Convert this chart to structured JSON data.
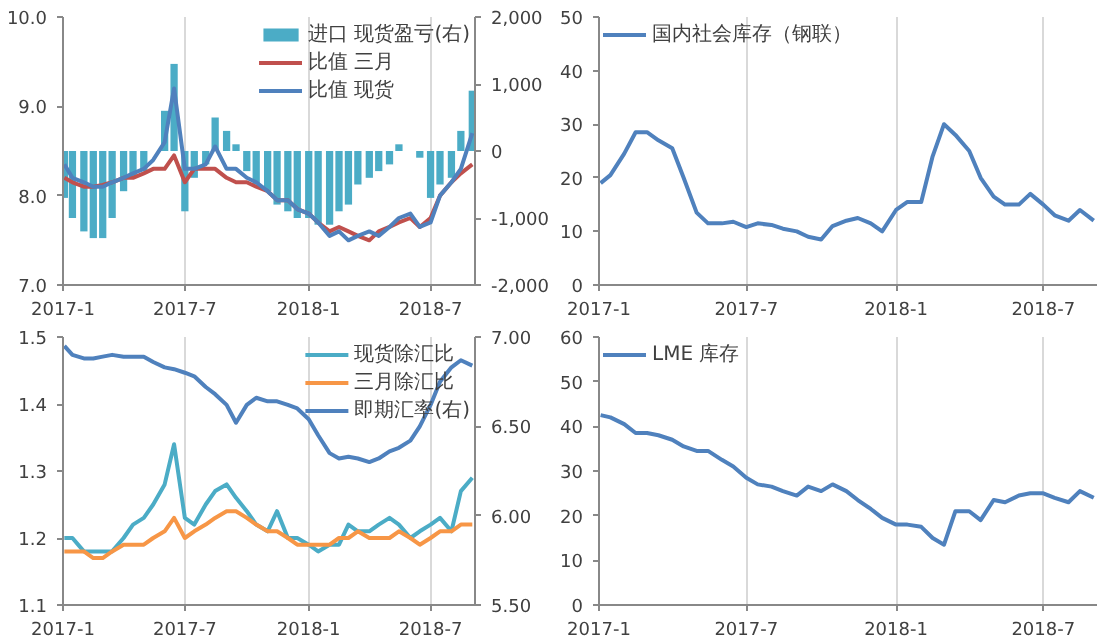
{
  "chart_data": [
    {
      "type": "line",
      "x": [
        "2017-01-03",
        "2017-01-15",
        "2017-02-01",
        "2017-02-15",
        "2017-03-01",
        "2017-03-15",
        "2017-04-01",
        "2017-04-15",
        "2017-05-01",
        "2017-05-15",
        "2017-06-01",
        "2017-06-15",
        "2017-07-01",
        "2017-07-15",
        "2017-08-01",
        "2017-08-15",
        "2017-09-01",
        "2017-09-15",
        "2017-10-01",
        "2017-10-15",
        "2017-11-01",
        "2017-11-15",
        "2017-12-01",
        "2017-12-15",
        "2018-01-01",
        "2018-01-15",
        "2018-02-01",
        "2018-02-15",
        "2018-03-01",
        "2018-03-15",
        "2018-04-01",
        "2018-04-15",
        "2018-05-01",
        "2018-05-15",
        "2018-06-01",
        "2018-06-15",
        "2018-07-01",
        "2018-07-15",
        "2018-08-01",
        "2018-08-15",
        "2018-09-01"
      ],
      "series": [
        {
          "name": "进口 现货盈亏(右)",
          "type": "bar",
          "axis": "y2",
          "color": "#4bacc6",
          "values": [
            -700,
            -1000,
            -1200,
            -1300,
            -1300,
            -1000,
            -600,
            -400,
            -300,
            0,
            600,
            1300,
            -900,
            -400,
            -200,
            500,
            300,
            100,
            -300,
            -500,
            -600,
            -800,
            -900,
            -1000,
            -1000,
            -1100,
            -1100,
            -900,
            -800,
            -500,
            -400,
            -300,
            -200,
            100,
            0,
            -100,
            -700,
            -500,
            -400,
            300,
            900
          ]
        },
        {
          "name": "比值 三月",
          "color": "#c0504d",
          "values": [
            8.2,
            8.15,
            8.1,
            8.1,
            8.12,
            8.15,
            8.2,
            8.2,
            8.25,
            8.3,
            8.3,
            8.45,
            8.15,
            8.3,
            8.3,
            8.3,
            8.2,
            8.15,
            8.15,
            8.1,
            8.05,
            7.95,
            7.95,
            7.85,
            7.8,
            7.7,
            7.6,
            7.65,
            7.6,
            7.55,
            7.5,
            7.6,
            7.65,
            7.7,
            7.75,
            7.65,
            7.75,
            8.0,
            8.15,
            8.25,
            8.35
          ]
        },
        {
          "name": "比值 现货",
          "color": "#4f81bd",
          "values": [
            8.35,
            8.2,
            8.15,
            8.1,
            8.1,
            8.15,
            8.2,
            8.25,
            8.3,
            8.4,
            8.6,
            9.2,
            8.3,
            8.3,
            8.35,
            8.55,
            8.3,
            8.3,
            8.2,
            8.15,
            8.05,
            7.95,
            7.95,
            7.85,
            7.8,
            7.7,
            7.55,
            7.6,
            7.5,
            7.55,
            7.6,
            7.55,
            7.65,
            7.75,
            7.8,
            7.65,
            7.7,
            8.0,
            8.15,
            8.3,
            8.7
          ]
        }
      ],
      "xlim": [
        "2017-01-01",
        "2018-09-05"
      ],
      "xticks": [
        {
          "value": "2017-01-01",
          "label": "2017-1"
        },
        {
          "value": "2017-07-01",
          "label": "2017-7"
        },
        {
          "value": "2018-01-01",
          "label": "2018-1"
        },
        {
          "value": "2018-07-01",
          "label": "2018-7"
        }
      ],
      "ylim": [
        7,
        10
      ],
      "yticks": [
        {
          "value": 7,
          "label": "7.0"
        },
        {
          "value": 8,
          "label": "8.0"
        },
        {
          "value": 9,
          "label": "9.0"
        },
        {
          "value": 10,
          "label": "10.0"
        }
      ],
      "y2lim": [
        -2000,
        2000
      ],
      "y2ticks": [
        {
          "value": -2000,
          "label": "-2,000"
        },
        {
          "value": -1000,
          "label": "-1,000"
        },
        0,
        {
          "value": 1000,
          "label": "1,000"
        },
        {
          "value": 2000,
          "label": "2,000"
        }
      ],
      "grid": "x",
      "legend": "top right"
    },
    {
      "type": "line",
      "x": [
        "2017-01-03",
        "2017-01-15",
        "2017-02-01",
        "2017-02-15",
        "2017-03-01",
        "2017-03-15",
        "2017-04-01",
        "2017-04-15",
        "2017-05-01",
        "2017-05-15",
        "2017-06-01",
        "2017-06-15",
        "2017-07-01",
        "2017-07-15",
        "2017-08-01",
        "2017-08-15",
        "2017-09-01",
        "2017-09-15",
        "2017-10-01",
        "2017-10-15",
        "2017-11-01",
        "2017-11-15",
        "2017-12-01",
        "2017-12-15",
        "2018-01-01",
        "2018-01-15",
        "2018-02-01",
        "2018-02-15",
        "2018-03-01",
        "2018-03-15",
        "2018-04-01",
        "2018-04-15",
        "2018-05-01",
        "2018-05-15",
        "2018-06-01",
        "2018-06-15",
        "2018-07-01",
        "2018-07-15",
        "2018-08-01",
        "2018-08-15",
        "2018-09-01"
      ],
      "series": [
        {
          "name": "国内社会库存（钢联）",
          "color": "#4f81bd",
          "values": [
            19,
            20.5,
            24.5,
            28.5,
            28.5,
            27,
            25.5,
            20,
            13.5,
            11.5,
            11.5,
            11.8,
            10.8,
            11.5,
            11.2,
            10.5,
            10,
            9,
            8.5,
            11,
            12,
            12.5,
            11.5,
            10,
            14,
            15.5,
            15.5,
            24,
            30,
            28,
            25,
            20,
            16.5,
            15,
            15,
            17,
            15,
            13,
            12,
            14,
            12
          ]
        }
      ],
      "xlim": [
        "2017-01-01",
        "2018-09-05"
      ],
      "xticks": [
        {
          "value": "2017-01-01",
          "label": "2017-1"
        },
        {
          "value": "2017-07-01",
          "label": "2017-7"
        },
        {
          "value": "2018-01-01",
          "label": "2018-1"
        },
        {
          "value": "2018-07-01",
          "label": "2018-7"
        }
      ],
      "ylim": [
        0,
        50
      ],
      "yticks": [
        0,
        10,
        20,
        30,
        40,
        50
      ],
      "grid": "x",
      "legend": "top left"
    },
    {
      "type": "line",
      "x": [
        "2017-01-03",
        "2017-01-15",
        "2017-02-01",
        "2017-02-15",
        "2017-03-01",
        "2017-03-15",
        "2017-04-01",
        "2017-04-15",
        "2017-05-01",
        "2017-05-15",
        "2017-06-01",
        "2017-06-15",
        "2017-07-01",
        "2017-07-15",
        "2017-08-01",
        "2017-08-15",
        "2017-09-01",
        "2017-09-15",
        "2017-10-01",
        "2017-10-15",
        "2017-11-01",
        "2017-11-15",
        "2017-12-01",
        "2017-12-15",
        "2018-01-01",
        "2018-01-15",
        "2018-02-01",
        "2018-02-15",
        "2018-03-01",
        "2018-03-15",
        "2018-04-01",
        "2018-04-15",
        "2018-05-01",
        "2018-05-15",
        "2018-06-01",
        "2018-06-15",
        "2018-07-01",
        "2018-07-15",
        "2018-08-01",
        "2018-08-15",
        "2018-09-01"
      ],
      "series": [
        {
          "name": "现货除汇比",
          "color": "#4bacc6",
          "values": [
            1.2,
            1.2,
            1.18,
            1.18,
            1.18,
            1.18,
            1.2,
            1.22,
            1.23,
            1.25,
            1.28,
            1.34,
            1.23,
            1.22,
            1.25,
            1.27,
            1.28,
            1.26,
            1.24,
            1.22,
            1.21,
            1.24,
            1.2,
            1.2,
            1.19,
            1.18,
            1.19,
            1.19,
            1.22,
            1.21,
            1.21,
            1.22,
            1.23,
            1.22,
            1.2,
            1.21,
            1.22,
            1.23,
            1.21,
            1.27,
            1.29
          ]
        },
        {
          "name": "三月除汇比",
          "color": "#f79646",
          "values": [
            1.18,
            1.18,
            1.18,
            1.17,
            1.17,
            1.18,
            1.19,
            1.19,
            1.19,
            1.2,
            1.21,
            1.23,
            1.2,
            1.21,
            1.22,
            1.23,
            1.24,
            1.24,
            1.23,
            1.22,
            1.21,
            1.21,
            1.2,
            1.19,
            1.19,
            1.19,
            1.19,
            1.2,
            1.2,
            1.21,
            1.2,
            1.2,
            1.2,
            1.21,
            1.2,
            1.19,
            1.2,
            1.21,
            1.21,
            1.22,
            1.22
          ]
        },
        {
          "name": "即期汇率(右)",
          "axis": "y2",
          "color": "#4f81bd",
          "values": [
            6.95,
            6.9,
            6.88,
            6.88,
            6.89,
            6.9,
            6.89,
            6.89,
            6.89,
            6.86,
            6.83,
            6.82,
            6.8,
            6.78,
            6.72,
            6.68,
            6.62,
            6.52,
            6.62,
            6.66,
            6.64,
            6.64,
            6.62,
            6.6,
            6.54,
            6.45,
            6.35,
            6.32,
            6.33,
            6.32,
            6.3,
            6.32,
            6.36,
            6.38,
            6.42,
            6.5,
            6.62,
            6.75,
            6.83,
            6.87,
            6.84
          ]
        }
      ],
      "xlim": [
        "2017-01-01",
        "2018-09-05"
      ],
      "xticks": [
        {
          "value": "2017-01-01",
          "label": "2017-1"
        },
        {
          "value": "2017-07-01",
          "label": "2017-7"
        },
        {
          "value": "2018-01-01",
          "label": "2018-1"
        },
        {
          "value": "2018-07-01",
          "label": "2018-7"
        }
      ],
      "ylim": [
        1.1,
        1.5
      ],
      "yticks": [
        1.1,
        1.2,
        1.3,
        1.4,
        1.5
      ],
      "y2lim": [
        5.5,
        7.0
      ],
      "y2ticks": [
        {
          "value": 5.5,
          "label": "5.50"
        },
        {
          "value": 6.0,
          "label": "6.00"
        },
        {
          "value": 6.5,
          "label": "6.50"
        },
        {
          "value": 7.0,
          "label": "7.00"
        }
      ],
      "grid": "x",
      "legend": "top right"
    },
    {
      "type": "line",
      "x": [
        "2017-01-03",
        "2017-01-15",
        "2017-02-01",
        "2017-02-15",
        "2017-03-01",
        "2017-03-15",
        "2017-04-01",
        "2017-04-15",
        "2017-05-01",
        "2017-05-15",
        "2017-06-01",
        "2017-06-15",
        "2017-07-01",
        "2017-07-15",
        "2017-08-01",
        "2017-08-15",
        "2017-09-01",
        "2017-09-15",
        "2017-10-01",
        "2017-10-15",
        "2017-11-01",
        "2017-11-15",
        "2017-12-01",
        "2017-12-15",
        "2018-01-01",
        "2018-01-15",
        "2018-02-01",
        "2018-02-15",
        "2018-03-01",
        "2018-03-15",
        "2018-04-01",
        "2018-04-15",
        "2018-05-01",
        "2018-05-15",
        "2018-06-01",
        "2018-06-15",
        "2018-07-01",
        "2018-07-15",
        "2018-08-01",
        "2018-08-15",
        "2018-09-01"
      ],
      "series": [
        {
          "name": "LME 库存",
          "color": "#4f81bd",
          "values": [
            42.5,
            42,
            40.5,
            38.5,
            38.5,
            38,
            37,
            35.5,
            34.5,
            34.5,
            32.5,
            31,
            28.5,
            27,
            26.5,
            25.5,
            24.5,
            26.5,
            25.5,
            27,
            25.5,
            23.5,
            21.5,
            19.5,
            18,
            18,
            17.5,
            15,
            13.5,
            21,
            21,
            19,
            23.5,
            23,
            24.5,
            25,
            25,
            24,
            23,
            25.5,
            24
          ]
        }
      ],
      "xlim": [
        "2017-01-01",
        "2018-09-05"
      ],
      "xticks": [
        {
          "value": "2017-01-01",
          "label": "2017-1"
        },
        {
          "value": "2017-07-01",
          "label": "2017-7"
        },
        {
          "value": "2018-01-01",
          "label": "2018-1"
        },
        {
          "value": "2018-07-01",
          "label": "2018-7"
        }
      ],
      "ylim": [
        0,
        60
      ],
      "yticks": [
        0,
        10,
        20,
        30,
        40,
        50,
        60
      ],
      "grid": "x",
      "legend": "top left"
    }
  ]
}
